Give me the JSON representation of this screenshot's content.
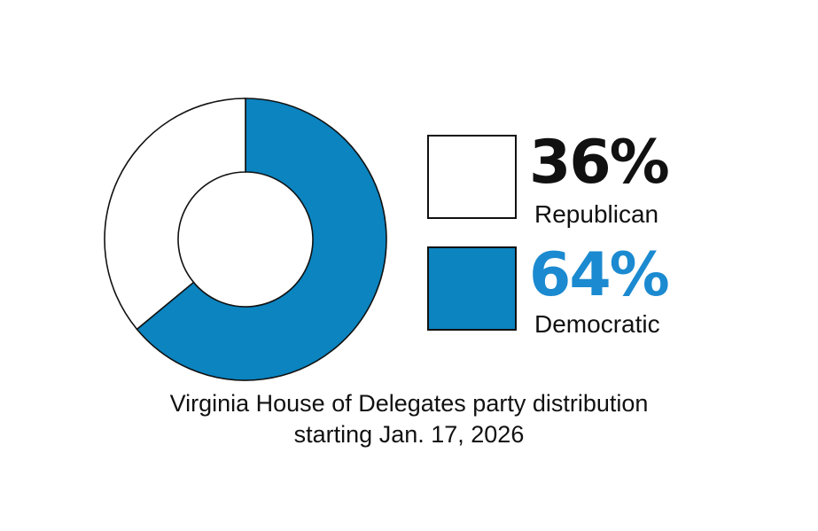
{
  "chart_data": {
    "type": "pie",
    "variant": "donut",
    "slices": [
      {
        "label": "Republican",
        "value": 36,
        "value_label": "36%",
        "color": "#ffffff",
        "text_color": "#111111"
      },
      {
        "label": "Democratic",
        "value": 64,
        "value_label": "64%",
        "color": "#0b84c0",
        "text_color": "#1b8ad0"
      }
    ],
    "legend_placement": "right",
    "caption": {
      "line1": "Virginia House of Delegates party distribution",
      "line2": "starting Jan. 17, 2026"
    }
  }
}
